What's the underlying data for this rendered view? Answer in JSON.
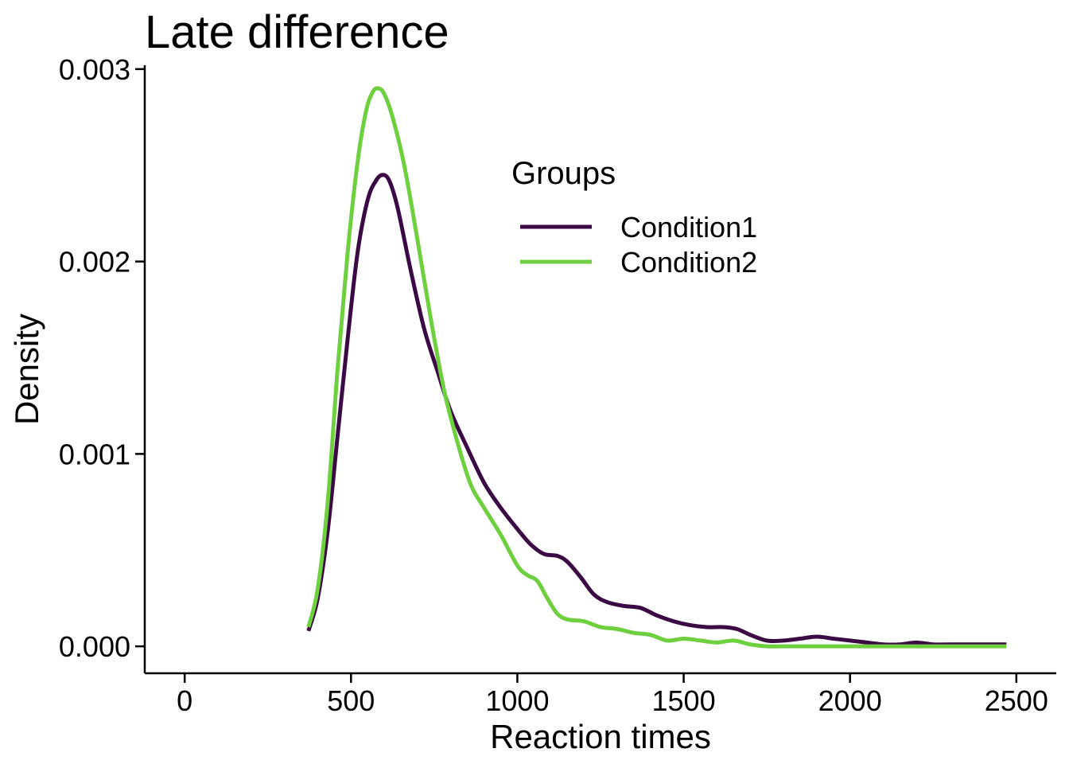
{
  "chart_data": {
    "type": "line",
    "title": "Late difference",
    "xlabel": "Reaction times",
    "ylabel": "Density",
    "xlim": [
      -120,
      2620
    ],
    "ylim": [
      -0.00014,
      0.00302
    ],
    "x_ticks": [
      0,
      500,
      1000,
      1500,
      2000,
      2500
    ],
    "x_tick_labels": [
      "0",
      "500",
      "1000",
      "1500",
      "2000",
      "2500"
    ],
    "y_ticks": [
      0,
      0.001,
      0.002,
      0.003
    ],
    "y_tick_labels": [
      "0.000",
      "0.001",
      "0.002",
      "0.003"
    ],
    "grid": false,
    "legend": {
      "title": "Groups",
      "position": "top-right"
    },
    "series": [
      {
        "name": "Condition1",
        "color": "#3b0a45",
        "points": [
          [
            372,
            8e-05
          ],
          [
            400,
            0.00025
          ],
          [
            430,
            0.0006
          ],
          [
            460,
            0.0011
          ],
          [
            490,
            0.0016
          ],
          [
            520,
            0.00205
          ],
          [
            550,
            0.00232
          ],
          [
            575,
            0.00242
          ],
          [
            595,
            0.00245
          ],
          [
            615,
            0.00242
          ],
          [
            640,
            0.00228
          ],
          [
            680,
            0.00195
          ],
          [
            720,
            0.00165
          ],
          [
            760,
            0.00143
          ],
          [
            800,
            0.00122
          ],
          [
            850,
            0.00103
          ],
          [
            900,
            0.00085
          ],
          [
            950,
            0.00072
          ],
          [
            1000,
            0.00061
          ],
          [
            1040,
            0.00053
          ],
          [
            1080,
            0.00048
          ],
          [
            1120,
            0.00047
          ],
          [
            1150,
            0.00044
          ],
          [
            1190,
            0.00036
          ],
          [
            1230,
            0.00027
          ],
          [
            1270,
            0.00023
          ],
          [
            1320,
            0.00021
          ],
          [
            1370,
            0.0002
          ],
          [
            1420,
            0.00016
          ],
          [
            1470,
            0.00013
          ],
          [
            1520,
            0.00011
          ],
          [
            1570,
            0.0001
          ],
          [
            1620,
            0.0001
          ],
          [
            1660,
            9e-05
          ],
          [
            1700,
            6e-05
          ],
          [
            1750,
            3e-05
          ],
          [
            1800,
            3e-05
          ],
          [
            1850,
            4e-05
          ],
          [
            1900,
            5e-05
          ],
          [
            1950,
            4e-05
          ],
          [
            2000,
            3e-05
          ],
          [
            2050,
            2e-05
          ],
          [
            2100,
            1e-05
          ],
          [
            2150,
            1e-05
          ],
          [
            2200,
            2e-05
          ],
          [
            2250,
            1e-05
          ],
          [
            2300,
            1e-05
          ],
          [
            2400,
            1e-05
          ],
          [
            2470,
            1e-05
          ]
        ]
      },
      {
        "name": "Condition2",
        "color": "#6ecf3f",
        "points": [
          [
            372,
            0.0001
          ],
          [
            400,
            0.0003
          ],
          [
            430,
            0.00075
          ],
          [
            460,
            0.00145
          ],
          [
            490,
            0.00205
          ],
          [
            520,
            0.00252
          ],
          [
            545,
            0.00278
          ],
          [
            565,
            0.00288
          ],
          [
            582,
            0.0029
          ],
          [
            600,
            0.00287
          ],
          [
            625,
            0.00275
          ],
          [
            660,
            0.0025
          ],
          [
            700,
            0.00211
          ],
          [
            740,
            0.0017
          ],
          [
            780,
            0.00133
          ],
          [
            820,
            0.00106
          ],
          [
            860,
            0.00084
          ],
          [
            900,
            0.00072
          ],
          [
            950,
            0.00058
          ],
          [
            1000,
            0.00042
          ],
          [
            1030,
            0.00037
          ],
          [
            1060,
            0.00034
          ],
          [
            1090,
            0.00025
          ],
          [
            1120,
            0.00017
          ],
          [
            1150,
            0.00014
          ],
          [
            1200,
            0.00013
          ],
          [
            1250,
            0.0001
          ],
          [
            1300,
            9e-05
          ],
          [
            1350,
            7e-05
          ],
          [
            1400,
            6e-05
          ],
          [
            1450,
            3e-05
          ],
          [
            1500,
            4e-05
          ],
          [
            1550,
            3e-05
          ],
          [
            1600,
            2e-05
          ],
          [
            1650,
            3e-05
          ],
          [
            1700,
            1e-05
          ],
          [
            1750,
            0
          ],
          [
            1800,
            0
          ],
          [
            1850,
            0
          ],
          [
            1900,
            0
          ],
          [
            2000,
            0
          ],
          [
            2200,
            0
          ],
          [
            2400,
            0
          ],
          [
            2470,
            0
          ]
        ]
      }
    ]
  }
}
